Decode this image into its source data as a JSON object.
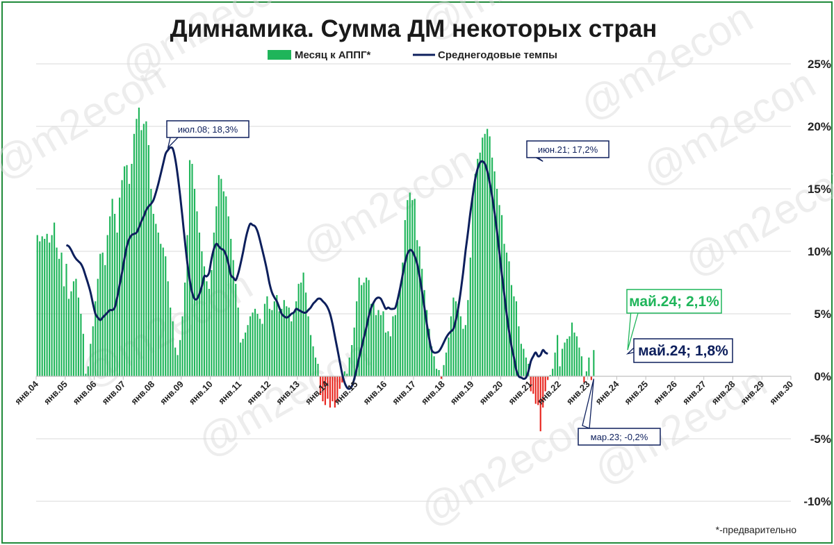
{
  "chart_data": {
    "type": "bar",
    "title": "Димнамика. Сумма ДМ некоторых стран",
    "legend": [
      {
        "name": "Месяц к АППГ*",
        "color": "#1fb55a",
        "kind": "bar"
      },
      {
        "name": "Среднегодовые темпы",
        "color": "#0d1f5c",
        "kind": "line"
      }
    ],
    "y_axis": {
      "ylim": [
        -10,
        25
      ],
      "ticks": [
        25,
        20,
        15,
        10,
        5,
        0,
        -5,
        -10
      ],
      "tick_labels": [
        "25%",
        "20%",
        "15%",
        "10%",
        "5%",
        "0%",
        "-5%",
        "-10%"
      ],
      "position": "right"
    },
    "x_axis": {
      "start_year": 2004,
      "end_year": 2030,
      "tick_labels": [
        "янв.04",
        "янв.05",
        "янв.06",
        "янв.07",
        "янв.08",
        "янв.09",
        "янв.10",
        "янв.11",
        "янв.12",
        "янв.13",
        "янв.14",
        "янв.15",
        "янв.16",
        "янв.17",
        "янв.18",
        "янв.19",
        "янв.20",
        "янв.21",
        "янв.22",
        "янв.23",
        "янв.24",
        "янв.25",
        "янв.26",
        "янв.27",
        "янв.28",
        "янв.29",
        "янв.30"
      ]
    },
    "grid": "horizontal",
    "positive_color": "#1fb55a",
    "negative_color": "#e8261f",
    "line_color": "#0d1f5c",
    "series": [
      {
        "name": "Месяц к АППГ*",
        "start": "2004-01",
        "values": [
          11.3,
          10.8,
          11.2,
          11.0,
          11.4,
          10.7,
          11.3,
          12.3,
          10.3,
          9.4,
          9.9,
          7.2,
          9.0,
          6.2,
          6.8,
          7.6,
          7.8,
          6.3,
          5.0,
          3.4,
          0.2,
          0.8,
          2.6,
          4.0,
          6.0,
          7.8,
          9.8,
          9.9,
          8.9,
          11.3,
          12.8,
          14.2,
          13.0,
          11.5,
          14.3,
          15.7,
          16.8,
          16.9,
          15.4,
          17.0,
          19.4,
          20.6,
          21.5,
          19.7,
          20.2,
          20.4,
          18.5,
          15.0,
          13.0,
          12.2,
          11.5,
          10.6,
          10.3,
          9.6,
          7.6,
          5.5,
          4.4,
          2.3,
          1.7,
          2.9,
          4.8,
          7.5,
          11.3,
          17.3,
          17.0,
          15.0,
          13.2,
          11.5,
          10.0,
          8.8,
          7.6,
          7.0,
          8.5,
          11.5,
          13.6,
          16.1,
          15.8,
          14.8,
          14.4,
          12.8,
          11.0,
          9.3,
          7.4,
          5.5,
          2.7,
          3.0,
          3.5,
          4.1,
          4.8,
          5.1,
          5.4,
          5.0,
          4.6,
          4.2,
          5.8,
          6.4,
          5.4,
          5.3,
          6.0,
          6.5,
          5.2,
          5.4,
          6.1,
          5.6,
          5.5,
          4.4,
          5.1,
          6.0,
          7.4,
          7.5,
          8.3,
          6.7,
          4.8,
          3.3,
          2.4,
          1.5,
          1.0,
          -1.5,
          -2.0,
          -2.3,
          -1.8,
          -2.5,
          -2.0,
          -2.5,
          -2.0,
          -1.0,
          -0.5,
          0.4,
          0.2,
          1.5,
          2.5,
          3.9,
          6.0,
          7.9,
          7.3,
          7.5,
          7.9,
          7.7,
          5.8,
          6.0,
          4.9,
          5.3,
          4.9,
          5.2,
          3.5,
          3.6,
          3.2,
          4.8,
          4.9,
          6.0,
          7.0,
          9.1,
          12.5,
          14.1,
          14.7,
          14.1,
          14.2,
          10.9,
          10.4,
          8.6,
          6.9,
          5.3,
          3.8,
          2.4,
          1.6,
          0.6,
          0.5,
          -0.2,
          0.9,
          1.9,
          3.1,
          4.8,
          6.3,
          6.0,
          5.8,
          4.8,
          3.8,
          4.1,
          6.1,
          9.5,
          14.5,
          16.2,
          17.4,
          17.9,
          19.1,
          19.4,
          19.8,
          19.2,
          17.5,
          16.4,
          15.0,
          13.7,
          12.9,
          10.6,
          9.9,
          9.2,
          7.3,
          6.4,
          6.0,
          4.0,
          2.6,
          2.2,
          1.5,
          1.0,
          -1.2,
          -1.4,
          -2.2,
          -2.3,
          -4.4,
          -2.5,
          -1.2,
          -0.3,
          0.1,
          0.6,
          1.9,
          3.3,
          0.8,
          2.2,
          2.7,
          3.0,
          3.2,
          4.3,
          3.5,
          3.2,
          2.3,
          1.6,
          -0.5,
          0.4,
          1.5,
          -0.3,
          2.1
        ]
      },
      {
        "name": "Среднегодовые темпы",
        "start": "2005-01",
        "values": [
          10.5,
          10.4,
          10.1,
          9.7,
          9.4,
          9.2,
          9.0,
          8.6,
          8.0,
          7.4,
          6.7,
          5.8,
          5.0,
          4.7,
          4.5,
          4.7,
          4.9,
          5.1,
          5.3,
          5.3,
          5.5,
          6.3,
          7.3,
          8.3,
          9.4,
          10.4,
          11.0,
          11.3,
          11.4,
          11.5,
          11.9,
          12.4,
          12.8,
          13.3,
          13.6,
          13.8,
          14.1,
          14.7,
          15.4,
          16.2,
          17.0,
          17.8,
          18.1,
          18.3,
          18.2,
          17.4,
          16.1,
          14.5,
          12.7,
          10.8,
          9.1,
          7.7,
          6.7,
          6.2,
          6.2,
          6.6,
          7.2,
          8.0,
          8.0,
          8.3,
          9.4,
          10.2,
          10.6,
          10.4,
          10.2,
          10.1,
          9.7,
          9.0,
          8.1,
          7.9,
          7.7,
          8.2,
          9.0,
          9.9,
          10.9,
          11.7,
          12.2,
          12.1,
          12.0,
          11.6,
          10.9,
          10.1,
          9.3,
          8.4,
          7.4,
          6.7,
          6.3,
          6.0,
          5.5,
          5.0,
          4.8,
          4.7,
          4.8,
          5.0,
          5.1,
          5.4,
          5.3,
          5.2,
          5.1,
          5.1,
          5.3,
          5.5,
          5.8,
          6.0,
          6.2,
          6.2,
          6.0,
          5.8,
          5.5,
          5.0,
          4.2,
          3.2,
          2.2,
          1.2,
          0.2,
          -0.5,
          -0.9,
          -1.0,
          -0.8,
          -0.2,
          0.6,
          1.5,
          2.3,
          3.1,
          3.9,
          4.8,
          5.5,
          5.9,
          6.2,
          6.3,
          6.2,
          5.8,
          5.4,
          5.5,
          5.4,
          5.4,
          5.5,
          6.2,
          7.1,
          8.1,
          9.1,
          9.8,
          10.1,
          10.0,
          9.6,
          9.0,
          8.0,
          6.8,
          5.5,
          4.2,
          3.0,
          2.1,
          1.9,
          1.9,
          2.0,
          2.3,
          2.7,
          3.1,
          3.4,
          3.6,
          3.8,
          4.5,
          5.5,
          6.8,
          8.3,
          10.0,
          11.5,
          13.1,
          14.5,
          15.8,
          16.6,
          17.1,
          17.2,
          17.0,
          16.4,
          15.5,
          14.4,
          13.1,
          11.6,
          9.9,
          8.2,
          6.6,
          5.0,
          3.6,
          2.4,
          1.5,
          0.5,
          0.0,
          -0.1,
          -0.2,
          -0.1,
          0.4,
          1.2,
          1.6,
          1.9,
          1.6,
          1.7,
          2.1,
          1.9,
          1.8
        ]
      }
    ],
    "annotations": [
      {
        "id": "peak08",
        "text": "июл.08; 18,3%",
        "date": "2008-07",
        "y": 18.3,
        "style": "small"
      },
      {
        "id": "peak21",
        "text": "июн.21; 17,2%",
        "date": "2021-06",
        "y": 17.2,
        "style": "small"
      },
      {
        "id": "min23",
        "text": "мар.23; -0,2%",
        "date": "2023-03",
        "y": -0.2,
        "style": "small"
      },
      {
        "id": "lastbar",
        "text": "май.24; 2,1%",
        "date": "2024-05",
        "y": 2.1,
        "style": "big-green"
      },
      {
        "id": "lastline",
        "text": "май.24; 1,8%",
        "date": "2024-05",
        "y": 1.8,
        "style": "big-navy"
      }
    ],
    "footnote": "*-предварительно",
    "watermark": "@m2econ"
  }
}
